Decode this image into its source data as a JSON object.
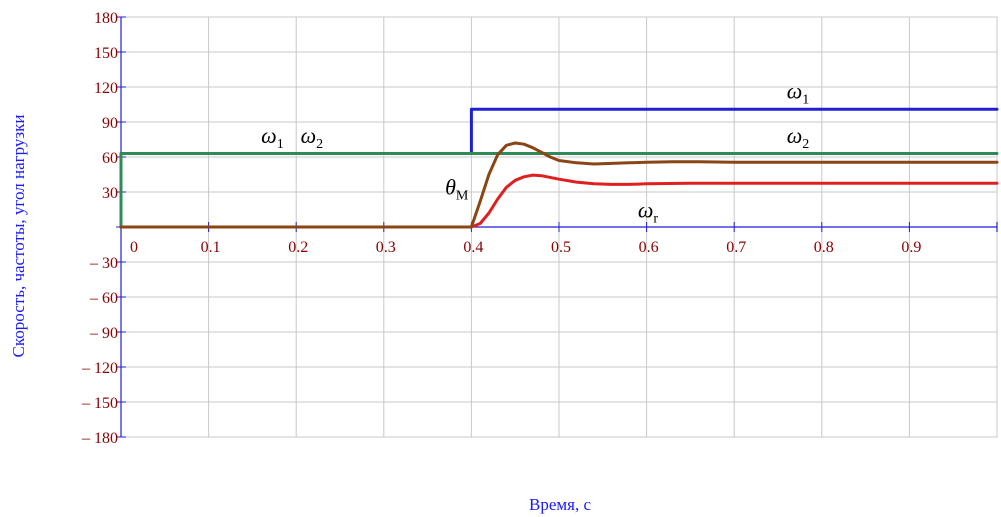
{
  "chart_data": {
    "type": "line",
    "title": "",
    "xlabel": "Время, с",
    "ylabel": "Скорость, частоты, угол нагрузки",
    "xlim": [
      0,
      1
    ],
    "ylim": [
      -180,
      180
    ],
    "grid": true,
    "x_ticks": [
      0,
      0.1,
      0.2,
      0.3,
      0.4,
      0.5,
      0.6,
      0.7,
      0.8,
      0.9
    ],
    "x_tick_labels": [
      "0",
      "0.1",
      "0.2",
      "0.3",
      "0.4",
      "0.5",
      "0.6",
      "0.7",
      "0.8",
      "0.9"
    ],
    "y_ticks": [
      180,
      150,
      120,
      90,
      60,
      30,
      0,
      -30,
      -60,
      -90,
      -120,
      -150,
      -180
    ],
    "y_tick_labels": [
      "180",
      "150",
      "120",
      "90",
      "60",
      "30",
      "",
      "– 30",
      "– 60",
      "– 90",
      "– 120",
      "– 150",
      "– 180"
    ],
    "series": [
      {
        "name": "ω1",
        "color": "#1f1fd6",
        "x": [
          0,
          0,
          0.4,
          0.4,
          1.0
        ],
        "y": [
          0,
          63,
          63,
          101,
          101
        ]
      },
      {
        "name": "ω2",
        "color": "#2e8b57",
        "x": [
          0,
          0,
          1.0
        ],
        "y": [
          0,
          63,
          63
        ]
      },
      {
        "name": "θм",
        "color": "#8b4513",
        "x": [
          0,
          0.4,
          0.41,
          0.42,
          0.43,
          0.44,
          0.45,
          0.46,
          0.47,
          0.48,
          0.49,
          0.5,
          0.52,
          0.54,
          0.56,
          0.58,
          0.6,
          0.63,
          0.66,
          0.7,
          0.8,
          0.9,
          1.0
        ],
        "y": [
          0,
          0,
          22,
          45,
          62,
          70,
          72,
          71,
          68,
          64,
          60,
          57,
          55,
          54,
          54.5,
          55,
          55.5,
          56,
          56,
          55.5,
          55.5,
          55.5,
          55.5
        ]
      },
      {
        "name": "ωr",
        "color": "#e02020",
        "x": [
          0,
          0.4,
          0.41,
          0.42,
          0.43,
          0.44,
          0.45,
          0.46,
          0.47,
          0.48,
          0.5,
          0.52,
          0.54,
          0.56,
          0.58,
          0.6,
          0.65,
          0.7,
          0.8,
          0.9,
          1.0
        ],
        "y": [
          0,
          0,
          3,
          12,
          24,
          34,
          40,
          43,
          44.5,
          44,
          41,
          38.5,
          37,
          36.5,
          36.5,
          37,
          37.5,
          37.5,
          37.5,
          37.5,
          37.5
        ]
      }
    ],
    "annotations": [
      {
        "base": "ω",
        "sub": "1",
        "x": 0.16,
        "y": 72
      },
      {
        "base": "ω",
        "sub": "2",
        "x": 0.205,
        "y": 72
      },
      {
        "base": "ω",
        "sub": "1",
        "x": 0.76,
        "y": 110
      },
      {
        "base": "ω",
        "sub": "2",
        "x": 0.76,
        "y": 72
      },
      {
        "base": "θ",
        "sub": "M",
        "x": 0.37,
        "y": 28
      },
      {
        "base": "ω",
        "sub": "r",
        "x": 0.59,
        "y": 8
      }
    ]
  }
}
